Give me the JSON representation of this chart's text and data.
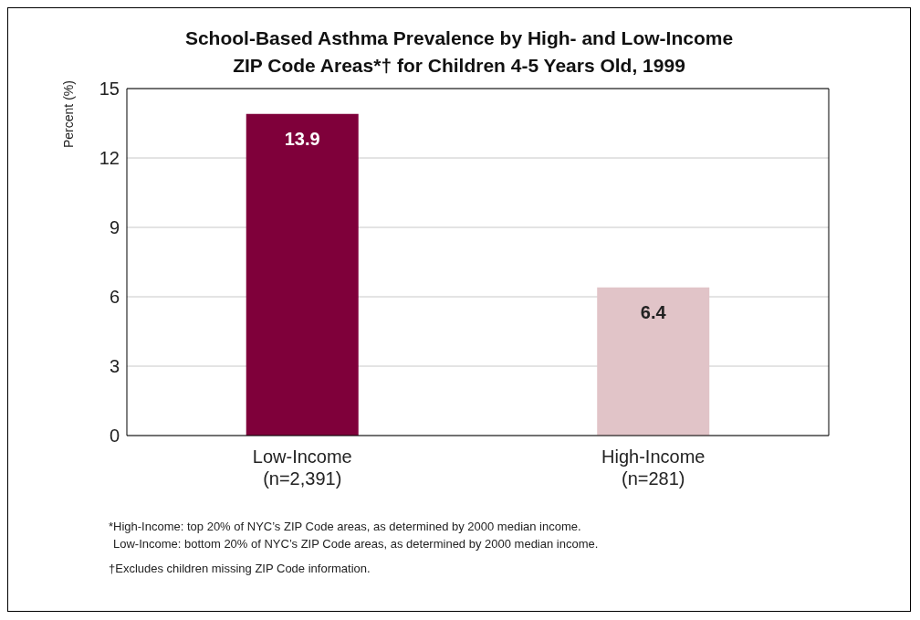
{
  "chart_data": {
    "type": "bar",
    "title": "School-Based Asthma Prevalence by High- and Low-Income\nZIP Code Areas*† for Children 4-5 Years Old, 1999",
    "ylabel": "Percent (%)",
    "categories": [
      "Low-Income\n(n=2,391)",
      "High-Income\n(n=281)"
    ],
    "values": [
      13.9,
      6.4
    ],
    "colors": [
      "#7f003a",
      "#e1c4c8"
    ],
    "ylim": [
      0,
      15
    ],
    "yticks": [
      0,
      3,
      6,
      9,
      12,
      15
    ],
    "grid": "y",
    "data_labels": true,
    "legend": false,
    "annotations": [
      "*High-Income: top 20% of NYC’s ZIP Code areas, as determined by 2000 median income.",
      "Low-Income: bottom 20% of NYC’s ZIP Code areas, as determined by 2000 median income.",
      "†Excludes children missing ZIP Code information."
    ]
  }
}
